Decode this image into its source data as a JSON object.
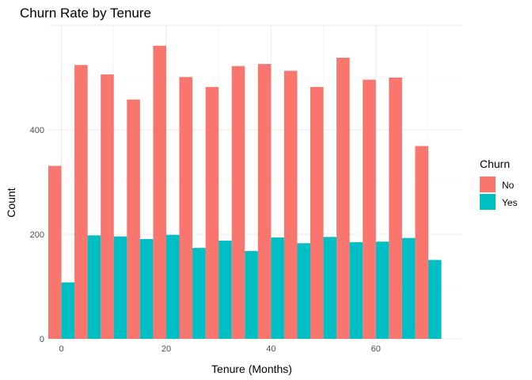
{
  "chart_data": {
    "type": "bar",
    "title": "Churn Rate by Tenure",
    "xlabel": "Tenure (Months)",
    "ylabel": "Count",
    "xlim": [
      -2.5,
      76.5
    ],
    "ylim": [
      0,
      600
    ],
    "x_ticks": [
      0,
      20,
      40,
      60
    ],
    "y_ticks": [
      0,
      200,
      400
    ],
    "grid": true,
    "legend": {
      "title": "Churn",
      "position": "right"
    },
    "series": [
      {
        "name": "No",
        "color": "#F8766D",
        "x": [
          0,
          5,
          10,
          15,
          20,
          25,
          30,
          35,
          40,
          45,
          50,
          55,
          60,
          65,
          70
        ],
        "values": [
          331,
          524,
          506,
          458,
          561,
          501,
          482,
          522,
          526,
          513,
          482,
          538,
          496,
          500,
          369
        ]
      },
      {
        "name": "Yes",
        "color": "#00BFC4",
        "x": [
          0,
          5,
          10,
          15,
          20,
          25,
          30,
          35,
          40,
          45,
          50,
          55,
          60,
          65,
          70
        ],
        "values": [
          108,
          198,
          196,
          191,
          199,
          174,
          188,
          168,
          194,
          183,
          195,
          185,
          186,
          193,
          151
        ]
      }
    ]
  }
}
